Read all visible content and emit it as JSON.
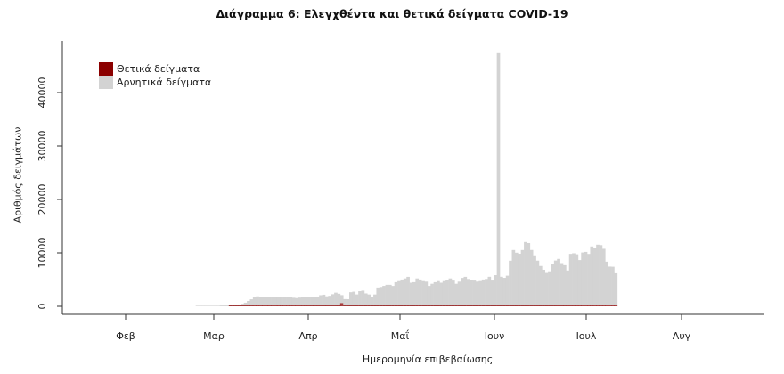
{
  "chart_data": {
    "type": "bar",
    "stacked": true,
    "title": "Διάγραμμα 6: Ελεγχθέντα και θετικά δείγματα COVID-19",
    "xlabel": "Ημερομηνία επιβεβαίωσης",
    "ylabel": "Αριθμός δειγμάτων",
    "ylim": [
      0,
      48000
    ],
    "yticks": [
      0,
      10000,
      20000,
      30000,
      40000
    ],
    "xticks": [
      "Φεβ",
      "Μαρ",
      "Απρ",
      "Μαΐ",
      "Ιουν",
      "Ιουλ",
      "Αυγ"
    ],
    "legend": {
      "position": "top-left",
      "entries": [
        "Θετικά δείγματα",
        "Αρνητικά δείγματα"
      ]
    },
    "colors": {
      "positive": "#8b0000",
      "negative": "#d3d3d3"
    },
    "x_start": "2020-01-26",
    "x_end": "2020-08-20",
    "bin": "day",
    "series": [
      {
        "name": "Αρνητικά δείγματα",
        "note": "daily values, approximate, read from chart",
        "values": [
          0,
          0,
          0,
          0,
          0,
          0,
          0,
          0,
          0,
          0,
          0,
          0,
          0,
          0,
          0,
          0,
          0,
          0,
          0,
          0,
          0,
          0,
          0,
          0,
          0,
          0,
          0,
          0,
          100,
          100,
          100,
          100,
          100,
          100,
          100,
          100,
          150,
          150,
          150,
          200,
          200,
          250,
          300,
          400,
          600,
          900,
          1200,
          1600,
          1700,
          1650,
          1600,
          1600,
          1550,
          1500,
          1500,
          1450,
          1500,
          1600,
          1600,
          1500,
          1450,
          1400,
          1500,
          1700,
          1600,
          1650,
          1700,
          1700,
          1750,
          2000,
          2100,
          1800,
          1900,
          2200,
          2500,
          2300,
          1500,
          1300,
          1300,
          2600,
          2700,
          2200,
          2800,
          2900,
          2400,
          2200,
          1700,
          2200,
          3500,
          3600,
          3800,
          4000,
          4000,
          3800,
          4500,
          4700,
          5000,
          5200,
          5500,
          4400,
          4500,
          5200,
          5000,
          4700,
          4600,
          3800,
          4200,
          4500,
          4700,
          4400,
          4700,
          4900,
          5200,
          4800,
          4200,
          4600,
          5300,
          5500,
          5100,
          4900,
          4800,
          4600,
          4700,
          5000,
          5100,
          5500,
          4800,
          5800,
          47500,
          5500,
          5300,
          5700,
          8500,
          10500,
          10000,
          9800,
          10500,
          12000,
          11800,
          10500,
          9500,
          8500,
          7500,
          6800,
          6200,
          6500,
          7800,
          8500,
          8800,
          8000,
          7600,
          6600,
          9700,
          9800,
          9600,
          8500,
          9900,
          10000,
          9600,
          11000,
          10700,
          11300,
          11200,
          10500,
          8100,
          7200,
          7200,
          6000
        ]
      },
      {
        "name": "Θετικά δείγματα",
        "note": "daily values, approximate, read from chart",
        "values": [
          0,
          0,
          0,
          0,
          0,
          0,
          0,
          0,
          0,
          0,
          0,
          0,
          0,
          0,
          0,
          0,
          0,
          0,
          0,
          0,
          0,
          0,
          0,
          0,
          0,
          0,
          0,
          0,
          0,
          0,
          0,
          0,
          0,
          0,
          0,
          0,
          0,
          0,
          0,
          10,
          20,
          30,
          40,
          60,
          80,
          100,
          120,
          150,
          170,
          180,
          200,
          200,
          220,
          230,
          240,
          250,
          250,
          200,
          180,
          170,
          160,
          150,
          140,
          130,
          120,
          110,
          100,
          100,
          90,
          90,
          80,
          80,
          70,
          70,
          60,
          60,
          600,
          50,
          40,
          40,
          40,
          30,
          30,
          30,
          20,
          20,
          20,
          20,
          20,
          20,
          20,
          20,
          20,
          15,
          15,
          15,
          15,
          15,
          15,
          15,
          15,
          15,
          15,
          15,
          15,
          15,
          15,
          15,
          15,
          15,
          15,
          15,
          15,
          15,
          15,
          15,
          15,
          15,
          15,
          20,
          20,
          20,
          20,
          20,
          20,
          25,
          25,
          30,
          30,
          30,
          30,
          30,
          30,
          30,
          30,
          30,
          30,
          30,
          40,
          40,
          40,
          40,
          40,
          40,
          40,
          50,
          50,
          60,
          70,
          80,
          90,
          100,
          110,
          120,
          130,
          150,
          170,
          180,
          200,
          200,
          220,
          230,
          250,
          260,
          250,
          230,
          200,
          180
        ]
      }
    ]
  }
}
